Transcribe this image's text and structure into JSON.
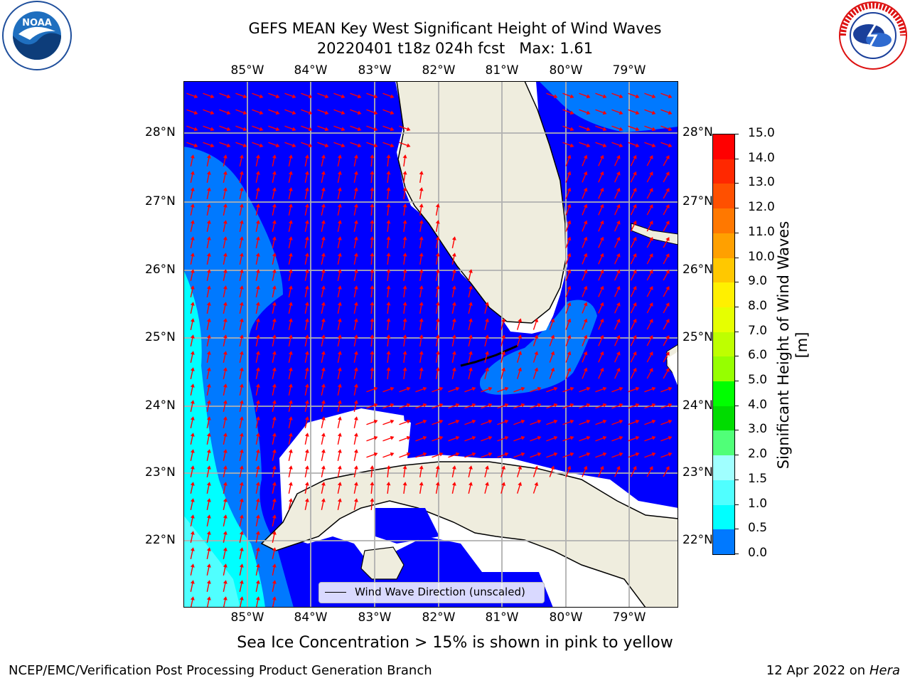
{
  "header": {
    "title_line1": "GEFS MEAN Key West Significant Height of Wind Waves",
    "title_line2": "20220401 t18z 024h fcst   Max: 1.61"
  },
  "logos": {
    "left": "noaa-logo",
    "left_text": "NOAA",
    "right": "nws-logo",
    "right_text": "NATIONAL WEATHER SERVICE"
  },
  "map": {
    "lon_labels": [
      "85°W",
      "84°W",
      "83°W",
      "82°W",
      "81°W",
      "80°W",
      "79°W"
    ],
    "lat_labels": [
      "28°N",
      "27°N",
      "26°N",
      "25°N",
      "24°N",
      "23°N",
      "22°N"
    ],
    "legend_label": "Wind Wave Direction (unscaled)",
    "colors": {
      "water_low": "#0000ff",
      "water_mid": "#0079ff",
      "water_high": "#00ffff",
      "land": "#efedde",
      "arrow": "#ff0000",
      "grid": "#b0b0b0"
    }
  },
  "colorbar": {
    "label": "Significant Height of Wind Waves [m]",
    "ticks": [
      "15.0",
      "14.0",
      "13.0",
      "12.0",
      "11.0",
      "10.0",
      "9.0",
      "8.0",
      "7.0",
      "6.0",
      "5.0",
      "4.0",
      "3.0",
      "2.0",
      "1.5",
      "1.0",
      "0.5",
      "0.0"
    ],
    "colors": [
      "#ff0000",
      "#ff2800",
      "#ff5000",
      "#ff7800",
      "#ffa000",
      "#ffc800",
      "#fff000",
      "#e6ff00",
      "#beff00",
      "#96ff00",
      "#00ff00",
      "#00dc00",
      "#50ff78",
      "#a0ffff",
      "#50ffff",
      "#00ffff",
      "#0079ff",
      "#0000ff"
    ]
  },
  "subtitle": "Sea Ice Concentration > 15% is shown in pink to yellow",
  "footer": {
    "left": "NCEP/EMC/Verification Post Processing Product Generation Branch",
    "right_date": "12 Apr 2022 on ",
    "right_host": "Hera"
  }
}
